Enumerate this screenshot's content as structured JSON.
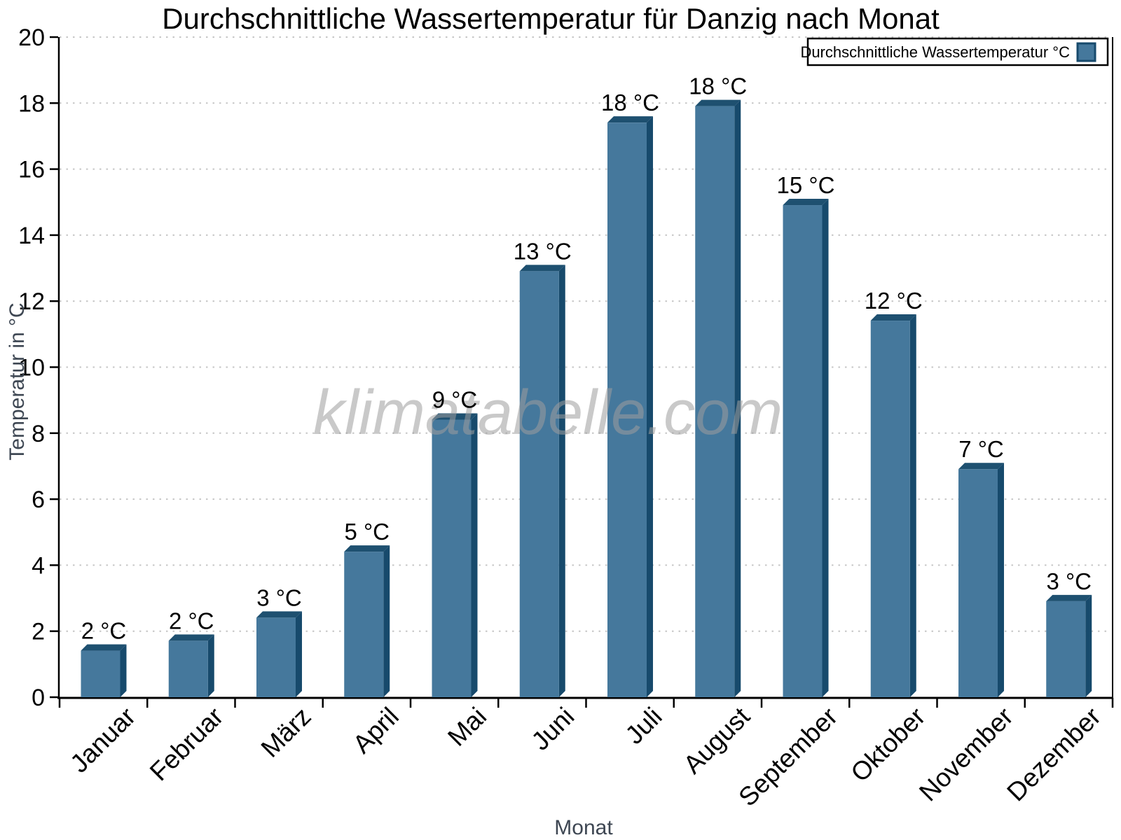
{
  "page": {
    "watermark": "klimatabelle.com"
  },
  "legend": {
    "label": "Durchschnittliche Wassertemperatur °C"
  },
  "chart_data": {
    "type": "bar",
    "title": "Durchschnittliche Wassertemperatur für Danzig nach Monat",
    "xlabel": "Monat",
    "ylabel": "Temperatur in °C",
    "categories": [
      "Januar",
      "Februar",
      "März",
      "April",
      "Mai",
      "Juni",
      "Juli",
      "August",
      "September",
      "Oktober",
      "November",
      "Dezember"
    ],
    "values": [
      1.6,
      1.9,
      2.6,
      4.6,
      8.6,
      13.1,
      17.6,
      18.1,
      15.1,
      11.6,
      7.1,
      3.1
    ],
    "bar_labels": [
      "2 °C",
      "2 °C",
      "3 °C",
      "5 °C",
      "9 °C",
      "13 °C",
      "18 °C",
      "18 °C",
      "15 °C",
      "12 °C",
      "7 °C",
      "3 °C"
    ],
    "series": [
      {
        "name": "Durchschnittliche Wassertemperatur °C",
        "values": [
          1.6,
          1.9,
          2.6,
          4.6,
          8.6,
          13.1,
          17.6,
          18.1,
          15.1,
          11.6,
          7.1,
          3.1
        ]
      }
    ],
    "ylim": [
      0,
      20
    ],
    "y_ticks": [
      0,
      2,
      4,
      6,
      8,
      10,
      12,
      14,
      16,
      18,
      20
    ],
    "grid": "dotted-horizontal",
    "legend_position": "top-right",
    "colors": {
      "bar_face": "#45789C",
      "bar_top": "#1E5070",
      "bar_side": "#174A6C",
      "grid": "#C6C6C6",
      "axis": "#000000",
      "axis_title": "#3E4753",
      "watermark": "#9E9E9E"
    }
  }
}
